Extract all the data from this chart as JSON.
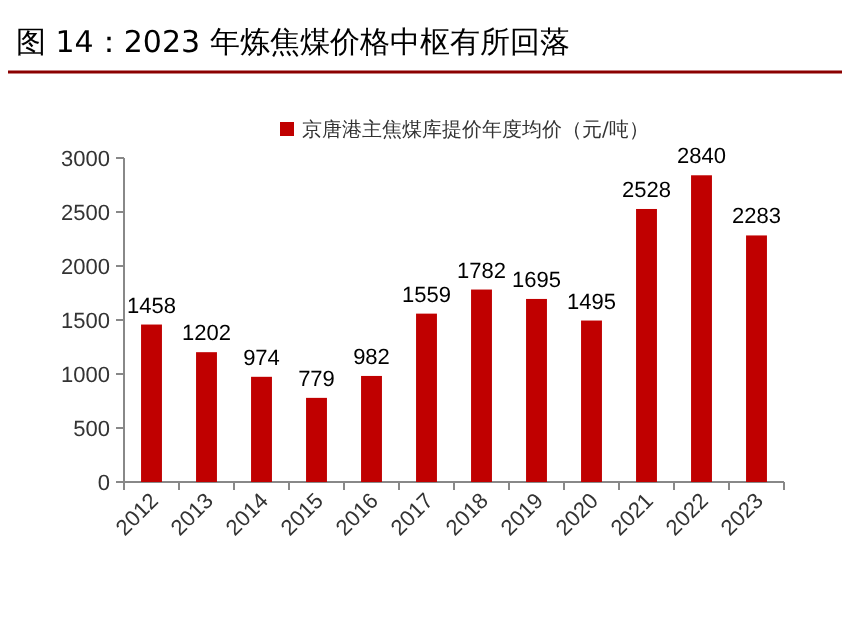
{
  "chart_data": {
    "type": "bar",
    "title": "图 14：2023 年炼焦煤价格中枢有所回落",
    "categories": [
      "2012",
      "2013",
      "2014",
      "2015",
      "2016",
      "2017",
      "2018",
      "2019",
      "2020",
      "2021",
      "2022",
      "2023"
    ],
    "series": [
      {
        "name": "京唐港主焦煤库提价年度均价（元/吨）",
        "color": "#c00000",
        "values": [
          1458,
          1202,
          974,
          779,
          982,
          1559,
          1782,
          1695,
          1495,
          2528,
          2840,
          2283
        ]
      }
    ],
    "ylim": [
      0,
      3000
    ],
    "yticks": [
      0,
      500,
      1000,
      1500,
      2000,
      2500,
      3000
    ],
    "data_labels": true,
    "legend": "top",
    "grid": false
  }
}
